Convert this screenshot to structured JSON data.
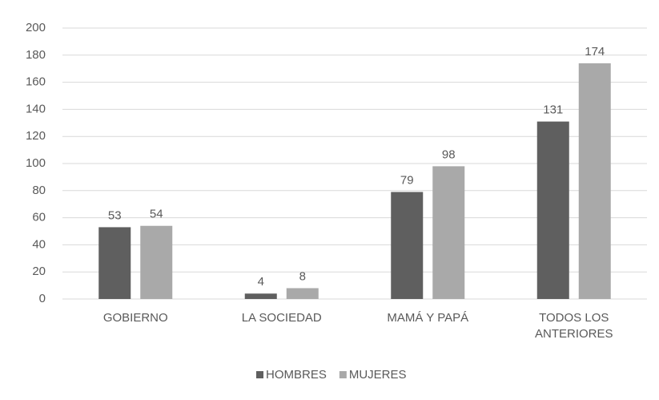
{
  "chart_data": {
    "type": "bar",
    "categories": [
      "GOBIERNO",
      "LA SOCIEDAD",
      "MAMÁ Y PAPÁ",
      "TODOS LOS ANTERIORES"
    ],
    "series": [
      {
        "name": "HOMBRES",
        "color": "#5f5f5f",
        "values": [
          53,
          4,
          79,
          131
        ]
      },
      {
        "name": "MUJERES",
        "color": "#a9a9a9",
        "values": [
          54,
          8,
          98,
          174
        ]
      }
    ],
    "ylim": [
      0,
      200
    ],
    "yticks": [
      0,
      20,
      40,
      60,
      80,
      100,
      120,
      140,
      160,
      180,
      200
    ],
    "grid": true,
    "legend": "bottom"
  }
}
